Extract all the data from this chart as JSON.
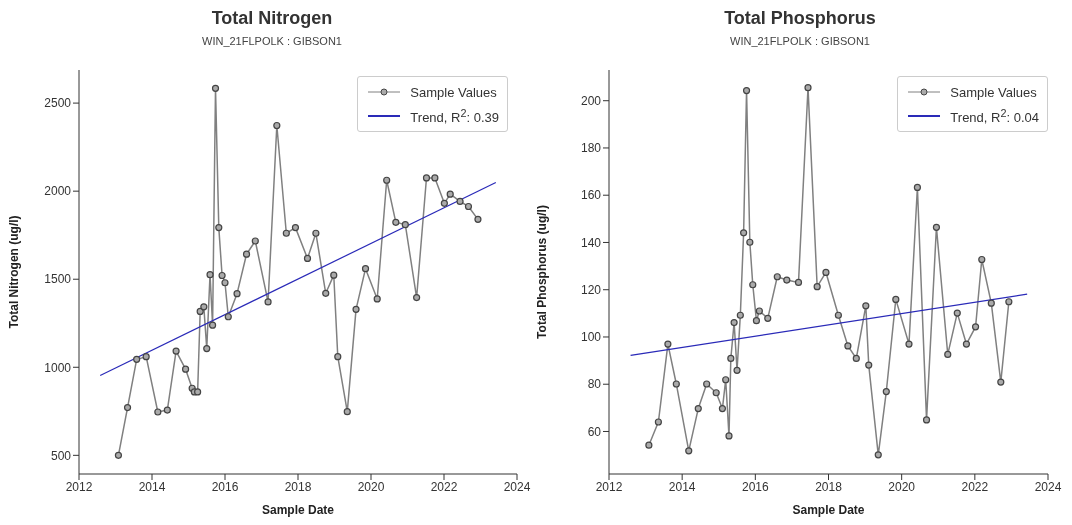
{
  "chart_data": [
    {
      "type": "line",
      "title": "Total Nitrogen",
      "subtitle": "WIN_21FLPOLK : GIBSON1",
      "xlabel": "Sample Date",
      "ylabel": "Total Nitrogen (ug/l)",
      "xlim": [
        2012,
        2024
      ],
      "xticks": [
        2012,
        2014,
        2016,
        2018,
        2020,
        2022,
        2024
      ],
      "ylim": [
        394,
        2688
      ],
      "yticks": [
        500,
        1000,
        1500,
        2000,
        2500
      ],
      "legend": "top right",
      "series": [
        {
          "name": "Sample Values",
          "color": "#808080",
          "marker": "circle",
          "x": [
            2013.08,
            2013.33,
            2013.58,
            2013.84,
            2014.16,
            2014.42,
            2014.66,
            2014.92,
            2015.1,
            2015.16,
            2015.25,
            2015.32,
            2015.42,
            2015.5,
            2015.59,
            2015.66,
            2015.74,
            2015.83,
            2015.92,
            2016.0,
            2016.09,
            2016.33,
            2016.59,
            2016.83,
            2017.18,
            2017.42,
            2017.68,
            2017.93,
            2018.26,
            2018.49,
            2018.76,
            2018.98,
            2019.09,
            2019.35,
            2019.59,
            2019.85,
            2020.17,
            2020.43,
            2020.68,
            2020.94,
            2021.25,
            2021.52,
            2021.75,
            2022.01,
            2022.17,
            2022.44,
            2022.67,
            2022.93
          ],
          "values": [
            500,
            771,
            1045,
            1060,
            746,
            757,
            1092,
            989,
            881,
            860,
            860,
            1317,
            1343,
            1106,
            1526,
            1239,
            2584,
            1793,
            1521,
            1480,
            1287,
            1418,
            1642,
            1717,
            1371,
            2373,
            1761,
            1793,
            1618,
            1761,
            1420,
            1523,
            1060,
            748,
            1329,
            1560,
            1388,
            2062,
            1823,
            1810,
            1396,
            2075,
            2075,
            1931,
            1983,
            1942,
            1913,
            1840
          ]
        },
        {
          "name": "Trend, R$^{2}$: 0.39",
          "color": "#2a2ab8",
          "marker": "none",
          "x": [
            2012.58,
            2023.42
          ],
          "values": [
            953,
            2049
          ]
        }
      ]
    },
    {
      "type": "line",
      "title": "Total Phosphorus",
      "subtitle": "WIN_21FLPOLK : GIBSON1",
      "xlabel": "Sample Date",
      "ylabel": "Total Phosphorus (ug/l)",
      "xlim": [
        2012,
        2024
      ],
      "xticks": [
        2012,
        2014,
        2016,
        2018,
        2020,
        2022,
        2024
      ],
      "ylim": [
        42,
        213
      ],
      "yticks": [
        60,
        80,
        100,
        120,
        140,
        160,
        180,
        200
      ],
      "legend": "top right",
      "series": [
        {
          "name": "Sample Values",
          "color": "#808080",
          "marker": "circle",
          "x": [
            2013.09,
            2013.35,
            2013.61,
            2013.84,
            2014.18,
            2014.44,
            2014.67,
            2014.93,
            2015.1,
            2015.19,
            2015.28,
            2015.33,
            2015.42,
            2015.5,
            2015.59,
            2015.68,
            2015.76,
            2015.85,
            2015.93,
            2016.03,
            2016.11,
            2016.34,
            2016.6,
            2016.86,
            2017.18,
            2017.44,
            2017.69,
            2017.93,
            2018.27,
            2018.53,
            2018.76,
            2019.02,
            2019.1,
            2019.36,
            2019.58,
            2019.84,
            2020.2,
            2020.43,
            2020.68,
            2020.95,
            2021.26,
            2021.52,
            2021.77,
            2022.02,
            2022.19,
            2022.45,
            2022.71,
            2022.93
          ],
          "values": [
            54.2,
            64.0,
            97.0,
            80.1,
            51.8,
            69.7,
            80.1,
            76.4,
            69.7,
            81.9,
            58.1,
            90.9,
            106.1,
            85.9,
            109.2,
            144.1,
            204.3,
            140.1,
            122.1,
            106.9,
            111.0,
            107.9,
            125.5,
            124.1,
            123.1,
            205.5,
            121.3,
            127.3,
            109.2,
            96.2,
            90.9,
            113.2,
            88.1,
            50.1,
            76.9,
            115.9,
            97.0,
            163.3,
            64.9,
            146.4,
            92.6,
            110.1,
            97.0,
            104.3,
            132.8,
            114.3,
            80.9,
            114.9
          ]
        },
        {
          "name": "Trend, R$^{2}$: 0.04",
          "color": "#2a2ab8",
          "marker": "none",
          "x": [
            2012.59,
            2023.43
          ],
          "values": [
            92.2,
            118.1
          ]
        }
      ]
    }
  ]
}
